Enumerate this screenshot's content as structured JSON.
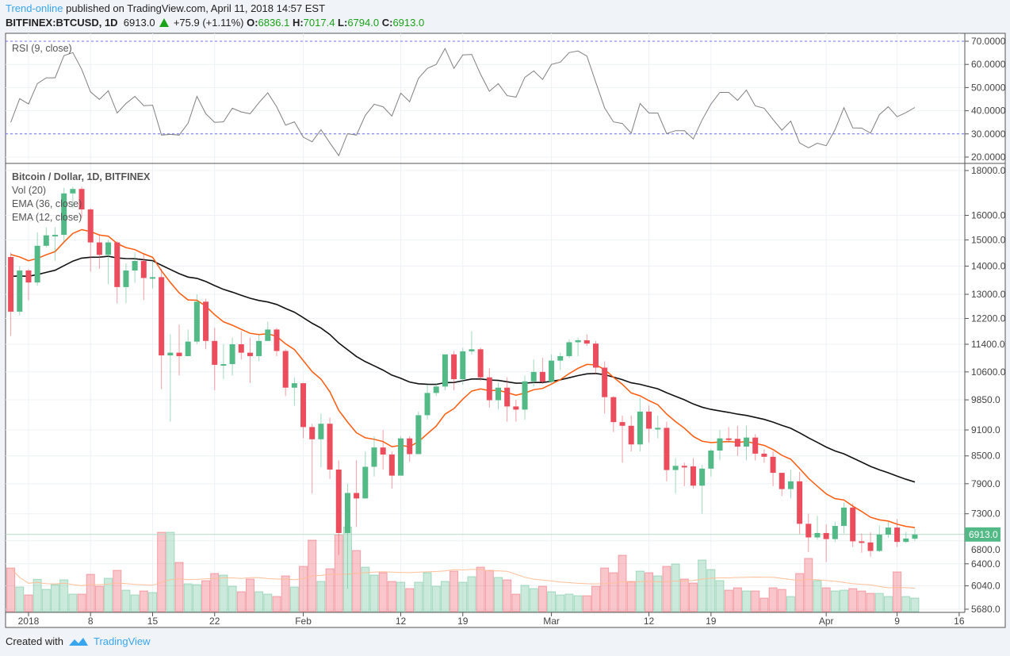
{
  "header": {
    "author": "Trend-online",
    "published": "published on TradingView.com, April 11, 2018 14:57 EST",
    "symbol": "BITFINEX:BTCUSD, 1D",
    "last": "6913.0",
    "change": "+75.9 (+1.11%)",
    "o_label": "O:",
    "o_value": "6836.1",
    "h_label": "H:",
    "h_value": "7017.4",
    "l_label": "L:",
    "l_value": "6794.0",
    "c_label": "C:",
    "c_value": "6913.0"
  },
  "footer": {
    "created_with": "Created with",
    "brand": "TradingView"
  },
  "colors": {
    "up": "#53b987",
    "down": "#eb4d5c",
    "ema12": "#ff5a0a",
    "ema36": "#111111",
    "vol_ma": "#ffbf99",
    "rsi": "#808080",
    "rsi_band": "#6f6ff5",
    "accent": "#37a6ef"
  },
  "chart_data": [
    {
      "type": "line",
      "title": "RSI (9, close)",
      "ylim": [
        20,
        70
      ],
      "y_ticks": [
        "70.0000",
        "60.0000",
        "50.0000",
        "40.0000",
        "30.0000",
        "20.0000"
      ],
      "y_tick_values": [
        70,
        60,
        50,
        40,
        30,
        20
      ],
      "bands": [
        70,
        30
      ],
      "values": [
        35.0,
        45.2,
        42.9,
        51.7,
        54.2,
        54.2,
        63.8,
        65.1,
        57.9,
        48.1,
        44.9,
        48.6,
        39.0,
        43.1,
        46.2,
        42.2,
        42.4,
        29.5,
        29.8,
        29.5,
        34.6,
        46.2,
        38.7,
        35.0,
        35.2,
        41.1,
        39.5,
        38.7,
        43.5,
        47.7,
        41.7,
        33.8,
        35.2,
        28.6,
        26.6,
        31.8,
        26.1,
        20.6,
        30.1,
        29.5,
        38.0,
        42.8,
        41.7,
        37.7,
        47.6,
        43.9,
        54.0,
        58.3,
        60.0,
        66.9,
        58.3,
        64.1,
        64.3,
        55.8,
        48.4,
        51.7,
        46.5,
        45.9,
        54.4,
        57.2,
        53.5,
        60.0,
        61.0,
        65.1,
        65.8,
        63.6,
        52.3,
        41.2,
        35.2,
        34.5,
        30.3,
        43.1,
        39.0,
        39.0,
        30.1,
        31.4,
        31.4,
        27.8,
        36.0,
        42.9,
        47.9,
        47.9,
        44.5,
        48.9,
        42.1,
        41.1,
        36.2,
        31.6,
        35.5,
        26.1,
        24.0,
        26.0,
        24.9,
        31.8,
        41.3,
        32.6,
        32.5,
        30.3,
        38.3,
        41.7,
        37.4,
        39.2,
        41.4
      ]
    },
    {
      "type": "candlestick",
      "title": "Bitcoin / Dollar, 1D, BITFINEX",
      "legend": [
        "Vol (20)",
        "EMA (36, close)",
        "EMA (12, close)"
      ],
      "scale": "log",
      "ylim": [
        5680,
        18000
      ],
      "y_ticks": [
        "18000.0",
        "16000.0",
        "15000.0",
        "14000.0",
        "13000.0",
        "12200.0",
        "11400.0",
        "10600.0",
        "9850.0",
        "9100.0",
        "8500.0",
        "7900.0",
        "7300.0",
        "6800.0",
        "6400.0",
        "6040.0",
        "5680.0"
      ],
      "y_tick_values": [
        18000,
        16000,
        15000,
        14000,
        13000,
        12200,
        11400,
        10600,
        9850,
        9100,
        8500,
        7900,
        7300,
        6800,
        6400,
        6040,
        5680
      ],
      "last_price_label": "6913.0",
      "last_price": 6913.0,
      "first_date": "2017-12-30",
      "x_ticks": [
        {
          "label": "2018",
          "day": 2
        },
        {
          "label": "8",
          "day": 9
        },
        {
          "label": "15",
          "day": 16
        },
        {
          "label": "22",
          "day": 23
        },
        {
          "label": "Feb",
          "day": 33
        },
        {
          "label": "12",
          "day": 44
        },
        {
          "label": "19",
          "day": 51
        },
        {
          "label": "Mar",
          "day": 61
        },
        {
          "label": "12",
          "day": 72
        },
        {
          "label": "19",
          "day": 79
        },
        {
          "label": "Apr",
          "day": 92
        },
        {
          "label": "9",
          "day": 100
        },
        {
          "label": "16",
          "day": 107
        }
      ],
      "first_open": 14340,
      "last_open": 6836.1,
      "close": [
        12420,
        13840,
        13410,
        14770,
        15180,
        15200,
        16950,
        17150,
        16250,
        14900,
        14420,
        14900,
        13250,
        13840,
        14190,
        13570,
        13600,
        11070,
        11150,
        11050,
        11480,
        12750,
        11500,
        10800,
        10820,
        11400,
        11150,
        11050,
        11500,
        11850,
        11200,
        10170,
        10290,
        9170,
        8880,
        9250,
        8200,
        6940,
        7710,
        7600,
        8260,
        8690,
        8530,
        8070,
        8900,
        8540,
        9460,
        10030,
        10200,
        11100,
        10400,
        11190,
        11250,
        10450,
        9840,
        10170,
        9680,
        9600,
        10340,
        10600,
        10330,
        10920,
        11050,
        11460,
        11520,
        11420,
        10720,
        9920,
        9290,
        9200,
        8760,
        9550,
        9130,
        9150,
        8190,
        8280,
        8270,
        7860,
        8220,
        8620,
        8900,
        8890,
        8710,
        8920,
        8550,
        8480,
        8130,
        7790,
        7950,
        7110,
        6860,
        6940,
        6830,
        7070,
        7420,
        6790,
        6770,
        6620,
        6910,
        7040,
        6780,
        6840,
        6913
      ],
      "high": [
        14500,
        14000,
        13900,
        15300,
        15500,
        15500,
        17200,
        17250,
        17250,
        16300,
        15200,
        15000,
        14950,
        14100,
        14500,
        14450,
        14200,
        13900,
        11700,
        12000,
        11850,
        13000,
        12850,
        11900,
        11400,
        11600,
        11800,
        11600,
        11700,
        12100,
        11900,
        11250,
        10450,
        10300,
        9250,
        9500,
        9400,
        8400,
        7900,
        8400,
        8600,
        8950,
        9100,
        8600,
        8950,
        8950,
        9550,
        10250,
        10300,
        11100,
        11200,
        11290,
        11800,
        11300,
        10700,
        10300,
        10450,
        9850,
        10500,
        10950,
        11000,
        11100,
        11150,
        11550,
        11600,
        11700,
        11500,
        10900,
        9950,
        9450,
        9450,
        9900,
        9700,
        9450,
        9300,
        8450,
        8350,
        8450,
        8300,
        8650,
        9100,
        9170,
        9200,
        9200,
        9000,
        8650,
        8600,
        8000,
        8200,
        8150,
        7300,
        7260,
        7100,
        7150,
        7520,
        7500,
        6930,
        6950,
        7080,
        7150,
        7200,
        6960,
        7017.4
      ],
      "low": [
        11650,
        12300,
        12800,
        13300,
        14700,
        14200,
        14900,
        16300,
        15900,
        13800,
        13900,
        13350,
        12700,
        12700,
        13400,
        12800,
        13200,
        10130,
        9300,
        10500,
        11050,
        11400,
        11250,
        10100,
        10400,
        10500,
        10950,
        10300,
        10900,
        11550,
        11050,
        9950,
        9700,
        8900,
        7700,
        8250,
        8000,
        6550,
        5990,
        7050,
        7700,
        8050,
        8200,
        7800,
        8080,
        8370,
        8550,
        9350,
        9950,
        10100,
        10100,
        10250,
        11100,
        10350,
        9650,
        9600,
        9300,
        9300,
        9350,
        10200,
        10270,
        10300,
        10650,
        11000,
        11050,
        11350,
        10550,
        9500,
        9050,
        8350,
        8600,
        8600,
        8800,
        8900,
        7950,
        7700,
        7850,
        7800,
        7300,
        8050,
        8400,
        8800,
        8500,
        8400,
        8400,
        8350,
        7850,
        7650,
        7600,
        6920,
        6600,
        6820,
        6430,
        6780,
        6930,
        6690,
        6590,
        6520,
        6600,
        6850,
        6690,
        6760,
        6794.0
      ],
      "volume_relative": [
        165,
        93,
        63,
        122,
        84,
        102,
        120,
        66,
        66,
        141,
        96,
        126,
        156,
        81,
        63,
        78,
        72,
        300,
        300,
        186,
        105,
        102,
        117,
        144,
        138,
        96,
        75,
        123,
        75,
        66,
        57,
        135,
        93,
        171,
        270,
        114,
        162,
        290,
        320,
        231,
        168,
        138,
        147,
        114,
        111,
        87,
        111,
        147,
        96,
        114,
        153,
        111,
        132,
        168,
        156,
        129,
        120,
        66,
        99,
        87,
        96,
        75,
        63,
        66,
        60,
        60,
        96,
        165,
        147,
        213,
        114,
        153,
        147,
        135,
        171,
        180,
        123,
        108,
        195,
        159,
        117,
        81,
        90,
        78,
        78,
        51,
        90,
        84,
        57,
        144,
        201,
        117,
        90,
        78,
        81,
        87,
        78,
        69,
        69,
        57,
        150,
        57,
        51
      ],
      "ema36_start": 13700,
      "ema12_start": 14800,
      "vol_ma_period": 20
    }
  ]
}
